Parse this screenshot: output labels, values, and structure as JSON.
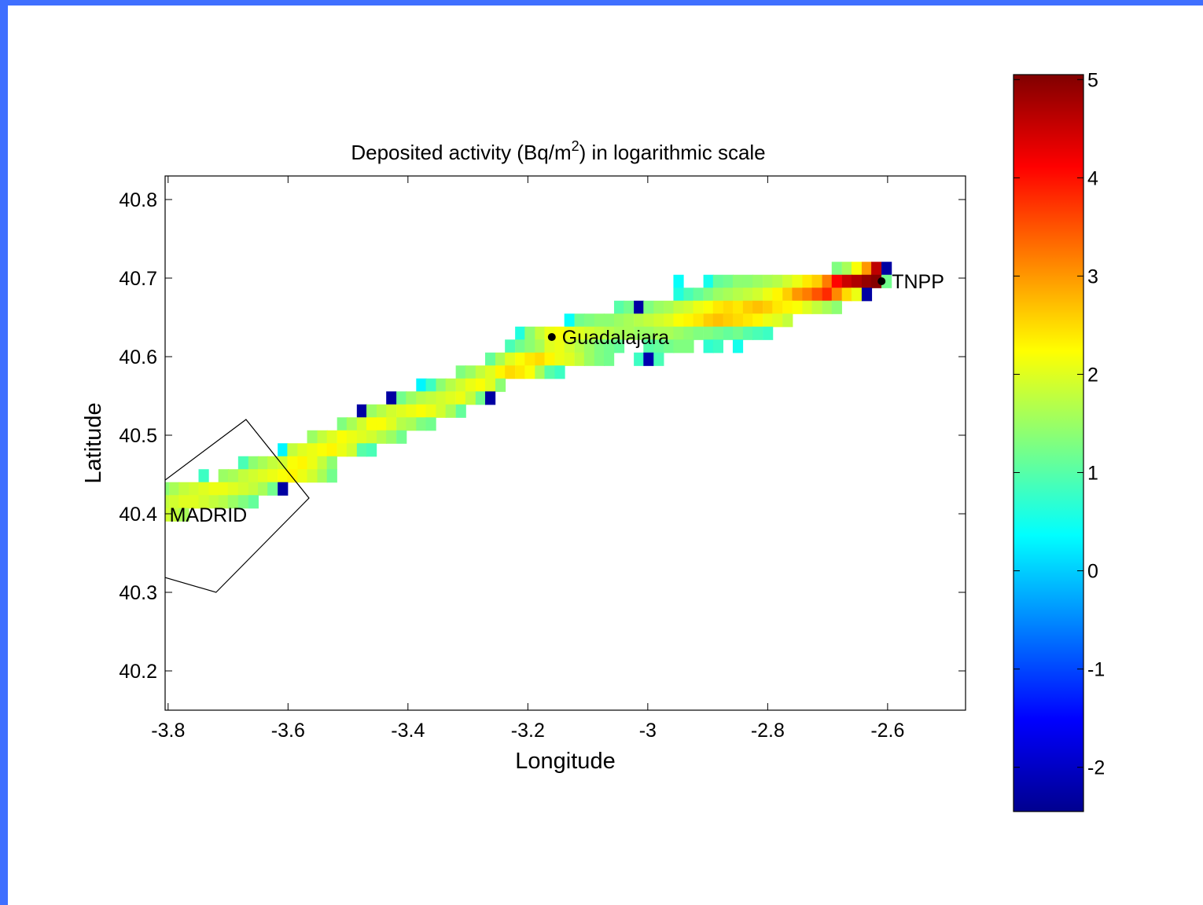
{
  "chart_data": {
    "type": "heatmap",
    "title": "Deposited activity (Bq/m²) in logarithmic scale",
    "title_parts": {
      "before": "Deposited activity (Bq/m",
      "sup": "2",
      "after": ") in logarithmic scale"
    },
    "xlabel": "Longitude",
    "ylabel": "Latitude",
    "xlim": [
      -3.805,
      -2.47
    ],
    "ylim": [
      40.15,
      40.83
    ],
    "xticks": [
      -3.8,
      -3.6,
      -3.4,
      -3.2,
      -3,
      -2.8,
      -2.6
    ],
    "xtick_labels": [
      "-3.8",
      "-3.6",
      "-3.4",
      "-3.2",
      "-3",
      "-2.8",
      "-2.6"
    ],
    "yticks": [
      40.2,
      40.3,
      40.4,
      40.5,
      40.6,
      40.7,
      40.8
    ],
    "ytick_labels": [
      "40.2",
      "40.3",
      "40.4",
      "40.5",
      "40.6",
      "40.7",
      "40.8"
    ],
    "grid": false,
    "colormap": "jet",
    "colorbar": {
      "range": [
        -2.45,
        5.05
      ],
      "ticks": [
        -2,
        -1,
        0,
        1,
        2,
        3,
        4,
        5
      ],
      "tick_labels": [
        "-2",
        "-1",
        "0",
        "1",
        "2",
        "3",
        "4",
        "5"
      ]
    },
    "cell_size": {
      "dlon": 0.0165,
      "dlat": 0.0165
    },
    "cells": [
      {
        "lat": 40.7125,
        "lons": [
          -2.685,
          -2.668,
          -2.652,
          -2.635,
          -2.619,
          -2.602
        ],
        "values": [
          1.3,
          1.6,
          2.2,
          3.0,
          4.6,
          -2.2
        ]
      },
      {
        "lat": 40.696,
        "lons": [
          -2.949,
          -2.899,
          -2.883,
          -2.866,
          -2.85,
          -2.833,
          -2.817,
          -2.8,
          -2.784,
          -2.767,
          -2.751,
          -2.734,
          -2.718,
          -2.701,
          -2.685,
          -2.668,
          -2.652,
          -2.635,
          -2.619,
          -2.602
        ],
        "values": [
          0.4,
          0.5,
          1.1,
          1.2,
          1.4,
          1.4,
          1.5,
          1.6,
          1.7,
          1.9,
          2.1,
          2.4,
          2.6,
          3.2,
          4.1,
          4.5,
          4.7,
          4.9,
          5.0,
          1.2
        ]
      },
      {
        "lat": 40.6795,
        "lons": [
          -2.949,
          -2.932,
          -2.916,
          -2.899,
          -2.883,
          -2.866,
          -2.85,
          -2.833,
          -2.817,
          -2.8,
          -2.784,
          -2.767,
          -2.751,
          -2.734,
          -2.718,
          -2.701,
          -2.685,
          -2.668,
          -2.652,
          -2.635
        ],
        "values": [
          0.6,
          0.9,
          1.1,
          1.3,
          1.5,
          1.6,
          1.7,
          1.8,
          1.9,
          2.1,
          2.3,
          2.6,
          3.0,
          3.2,
          3.5,
          3.8,
          3.1,
          2.5,
          2.1,
          -2.2
        ]
      },
      {
        "lat": 40.663,
        "lons": [
          -3.048,
          -3.032,
          -3.015,
          -2.999,
          -2.982,
          -2.965,
          -2.949,
          -2.932,
          -2.916,
          -2.899,
          -2.883,
          -2.866,
          -2.85,
          -2.833,
          -2.817,
          -2.8,
          -2.784,
          -2.767,
          -2.751,
          -2.734,
          -2.718,
          -2.701,
          -2.685
        ],
        "values": [
          1.0,
          1.2,
          -2.2,
          1.3,
          1.5,
          1.6,
          1.8,
          1.9,
          2.1,
          2.2,
          2.4,
          2.5,
          2.4,
          2.6,
          2.7,
          2.6,
          2.4,
          2.3,
          2.2,
          2.0,
          1.8,
          1.6,
          1.4
        ]
      },
      {
        "lat": 40.6465,
        "lons": [
          -3.131,
          -3.114,
          -3.098,
          -3.081,
          -3.065,
          -3.048,
          -3.032,
          -3.015,
          -2.999,
          -2.982,
          -2.965,
          -2.949,
          -2.932,
          -2.916,
          -2.899,
          -2.883,
          -2.866,
          -2.85,
          -2.833,
          -2.817,
          -2.8,
          -2.784,
          -2.767
        ],
        "values": [
          0.4,
          1.2,
          1.3,
          1.4,
          1.4,
          1.5,
          1.6,
          1.7,
          1.8,
          1.9,
          2.0,
          2.2,
          2.3,
          2.4,
          2.6,
          2.7,
          2.6,
          2.5,
          2.4,
          2.3,
          2.1,
          2.0,
          1.8
        ]
      },
      {
        "lat": 40.63,
        "lons": [
          -3.213,
          -3.197,
          -3.18,
          -3.164,
          -3.147,
          -3.131,
          -3.114,
          -3.098,
          -3.081,
          -3.065,
          -3.048,
          -3.032,
          -3.015,
          -2.999,
          -2.982,
          -2.965,
          -2.949,
          -2.932,
          -2.916,
          -2.899,
          -2.883,
          -2.866,
          -2.85,
          -2.833,
          -2.817,
          -2.8
        ],
        "values": [
          0.6,
          1.4,
          1.8,
          2.1,
          2.2,
          2.1,
          2.0,
          1.9,
          1.8,
          1.7,
          1.6,
          1.6,
          1.5,
          1.5,
          1.6,
          1.6,
          1.5,
          1.4,
          1.3,
          1.3,
          1.2,
          1.1,
          1.2,
          1.0,
          0.9,
          0.8
        ]
      },
      {
        "lat": 40.6135,
        "lons": [
          -3.23,
          -3.213,
          -3.197,
          -3.18,
          -3.164,
          -3.147,
          -3.131,
          -3.114,
          -3.098,
          -3.081,
          -3.065,
          -3.048,
          -2.999,
          -2.982,
          -2.965,
          -2.949,
          -2.932,
          -2.899,
          -2.883,
          -2.85
        ],
        "values": [
          0.9,
          1.2,
          1.4,
          1.6,
          2.0,
          2.1,
          1.9,
          1.7,
          1.5,
          1.3,
          1.2,
          1.1,
          1.0,
          1.1,
          1.2,
          1.3,
          1.3,
          0.7,
          0.8,
          0.5
        ]
      },
      {
        "lat": 40.597,
        "lons": [
          -3.263,
          -3.246,
          -3.23,
          -3.213,
          -3.197,
          -3.18,
          -3.164,
          -3.147,
          -3.131,
          -3.114,
          -3.098,
          -3.081,
          -3.065,
          -3.015,
          -2.999,
          -2.982
        ],
        "values": [
          1.1,
          1.6,
          2.0,
          2.2,
          2.4,
          2.5,
          2.3,
          2.1,
          2.0,
          1.8,
          1.5,
          1.3,
          1.2,
          0.8,
          -2.1,
          0.9
        ]
      },
      {
        "lat": 40.5805,
        "lons": [
          -3.312,
          -3.296,
          -3.279,
          -3.263,
          -3.246,
          -3.23,
          -3.213,
          -3.197,
          -3.18,
          -3.164,
          -3.147
        ],
        "values": [
          1.3,
          1.5,
          1.8,
          2.0,
          2.3,
          2.5,
          2.4,
          2.2,
          1.6,
          1.0,
          0.8
        ]
      },
      {
        "lat": 40.564,
        "lons": [
          -3.378,
          -3.362,
          -3.345,
          -3.329,
          -3.312,
          -3.296,
          -3.279,
          -3.263,
          -3.246
        ],
        "values": [
          0.3,
          0.8,
          1.4,
          1.7,
          1.9,
          2.1,
          2.2,
          2.0,
          1.4
        ]
      },
      {
        "lat": 40.5475,
        "lons": [
          -3.428,
          -3.411,
          -3.395,
          -3.378,
          -3.362,
          -3.345,
          -3.329,
          -3.312,
          -3.296,
          -3.279,
          -3.263
        ],
        "values": [
          -2.2,
          1.2,
          1.5,
          1.7,
          1.8,
          1.9,
          2.0,
          2.1,
          1.8,
          1.2,
          -2.2
        ]
      },
      {
        "lat": 40.531,
        "lons": [
          -3.477,
          -3.461,
          -3.444,
          -3.428,
          -3.411,
          -3.395,
          -3.378,
          -3.362,
          -3.345,
          -3.329,
          -3.312
        ],
        "values": [
          -2.2,
          1.5,
          1.7,
          1.9,
          2.0,
          2.1,
          2.2,
          2.1,
          1.9,
          1.6,
          1.1
        ]
      },
      {
        "lat": 40.5145,
        "lons": [
          -3.51,
          -3.494,
          -3.477,
          -3.461,
          -3.444,
          -3.428,
          -3.411,
          -3.395,
          -3.378,
          -3.362
        ],
        "values": [
          1.3,
          1.6,
          1.9,
          2.2,
          2.2,
          2.0,
          1.7,
          1.6,
          1.3,
          1.2
        ]
      },
      {
        "lat": 40.498,
        "lons": [
          -3.56,
          -3.543,
          -3.527,
          -3.51,
          -3.494,
          -3.477,
          -3.461,
          -3.444,
          -3.428,
          -3.411
        ],
        "values": [
          1.5,
          1.8,
          2.0,
          2.2,
          2.1,
          2.0,
          1.9,
          1.7,
          1.5,
          1.2
        ]
      },
      {
        "lat": 40.4815,
        "lons": [
          -3.609,
          -3.593,
          -3.576,
          -3.56,
          -3.543,
          -3.527,
          -3.51,
          -3.494,
          -3.477,
          -3.461
        ],
        "values": [
          0.3,
          1.8,
          2.0,
          2.1,
          2.2,
          2.3,
          2.1,
          1.9,
          1.0,
          0.9
        ]
      },
      {
        "lat": 40.465,
        "lons": [
          -3.675,
          -3.658,
          -3.642,
          -3.626,
          -3.609,
          -3.593,
          -3.576,
          -3.56,
          -3.543,
          -3.527
        ],
        "values": [
          0.9,
          1.4,
          1.6,
          1.8,
          1.9,
          2.2,
          2.3,
          2.1,
          1.8,
          1.4
        ]
      },
      {
        "lat": 40.4485,
        "lons": [
          -3.741,
          -3.708,
          -3.692,
          -3.675,
          -3.658,
          -3.642,
          -3.626,
          -3.609,
          -3.593,
          -3.576,
          -3.56,
          -3.543,
          -3.527
        ],
        "values": [
          0.8,
          1.5,
          1.6,
          1.8,
          1.9,
          2.0,
          2.1,
          2.2,
          2.3,
          2.1,
          1.9,
          1.6,
          1.2
        ]
      },
      {
        "lat": 40.432,
        "lons": [
          -3.807,
          -3.79,
          -3.774,
          -3.757,
          -3.741,
          -3.724,
          -3.708,
          -3.692,
          -3.675,
          -3.658,
          -3.642,
          -3.626,
          -3.609
        ],
        "values": [
          1.4,
          1.6,
          1.8,
          1.9,
          2.0,
          2.1,
          2.1,
          2.0,
          1.9,
          1.8,
          1.6,
          1.2,
          -2.2
        ]
      },
      {
        "lat": 40.4155,
        "lons": [
          -3.807,
          -3.79,
          -3.774,
          -3.757,
          -3.741,
          -3.724,
          -3.708,
          -3.692,
          -3.675,
          -3.658
        ],
        "values": [
          1.8,
          1.9,
          2.0,
          2.0,
          1.9,
          1.8,
          1.7,
          1.5,
          1.3,
          1.1
        ]
      },
      {
        "lat": 40.399,
        "lons": [
          -3.807,
          -3.79,
          -3.774
        ],
        "values": [
          1.9,
          1.8,
          1.6
        ]
      }
    ],
    "outline": {
      "name": "MADRID",
      "points": [
        [
          -3.81,
          40.44
        ],
        [
          -3.67,
          40.52
        ],
        [
          -3.565,
          40.42
        ],
        [
          -3.72,
          40.3
        ],
        [
          -3.81,
          40.32
        ]
      ]
    },
    "annotations": [
      {
        "label": "TNPP",
        "lon": -2.61,
        "lat": 40.696,
        "marker": true
      },
      {
        "label": "Guadalajara",
        "lon": -3.16,
        "lat": 40.625,
        "marker": true
      },
      {
        "label": "MADRID",
        "lon": -3.795,
        "lat": 40.399,
        "marker": false
      }
    ]
  }
}
